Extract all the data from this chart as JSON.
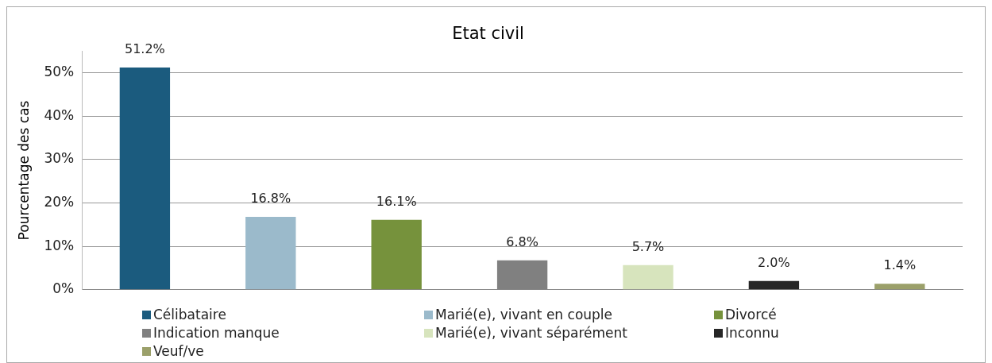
{
  "chart_data": {
    "type": "bar",
    "title": "Etat civil",
    "ylabel": "Pourcentage des cas",
    "categories": [
      null,
      null,
      null,
      null,
      null,
      null,
      null
    ],
    "series": [
      {
        "name": "Célibataire",
        "color": "#1b5b7e",
        "values": [
          51.2,
          null,
          null,
          null,
          null,
          null,
          null
        ],
        "value_labels": [
          "51.2%",
          null,
          null,
          null,
          null,
          null,
          null
        ]
      },
      {
        "name": "Marié(e), vivant en couple",
        "color": "#9bbacb",
        "values": [
          null,
          16.8,
          null,
          null,
          null,
          null,
          null
        ],
        "value_labels": [
          null,
          "16.8%",
          null,
          null,
          null,
          null,
          null
        ]
      },
      {
        "name": "Divorcé",
        "color": "#76923c",
        "values": [
          null,
          null,
          16.1,
          null,
          null,
          null,
          null
        ],
        "value_labels": [
          null,
          null,
          "16.1%",
          null,
          null,
          null,
          null
        ]
      },
      {
        "name": "Indication manque",
        "color": "#808080",
        "values": [
          null,
          null,
          null,
          6.8,
          null,
          null,
          null
        ],
        "value_labels": [
          null,
          null,
          null,
          "6.8%",
          null,
          null,
          null
        ]
      },
      {
        "name": "Marié(e), vivant séparément",
        "color": "#d7e4bd",
        "values": [
          null,
          null,
          null,
          null,
          5.7,
          null,
          null
        ],
        "value_labels": [
          null,
          null,
          null,
          null,
          "5.7%",
          null,
          null
        ]
      },
      {
        "name": "Inconnu",
        "color": "#262626",
        "values": [
          null,
          null,
          null,
          null,
          null,
          2.0,
          null
        ],
        "value_labels": [
          null,
          null,
          null,
          null,
          null,
          "2.0%",
          null
        ]
      },
      {
        "name": "Veuf/ve",
        "color": "#9ba06a",
        "values": [
          null,
          null,
          null,
          null,
          null,
          null,
          1.4
        ],
        "value_labels": [
          null,
          null,
          null,
          null,
          null,
          null,
          "1.4%"
        ]
      }
    ],
    "ylim": [
      0,
      55
    ],
    "yticks": [
      {
        "value": 0,
        "label": "0%"
      },
      {
        "value": 10,
        "label": "10%"
      },
      {
        "value": 20,
        "label": "20%"
      },
      {
        "value": 30,
        "label": "30%"
      },
      {
        "value": 40,
        "label": "40%"
      },
      {
        "value": 50,
        "label": "50%"
      }
    ],
    "grid": "y",
    "legend": "bottom"
  }
}
